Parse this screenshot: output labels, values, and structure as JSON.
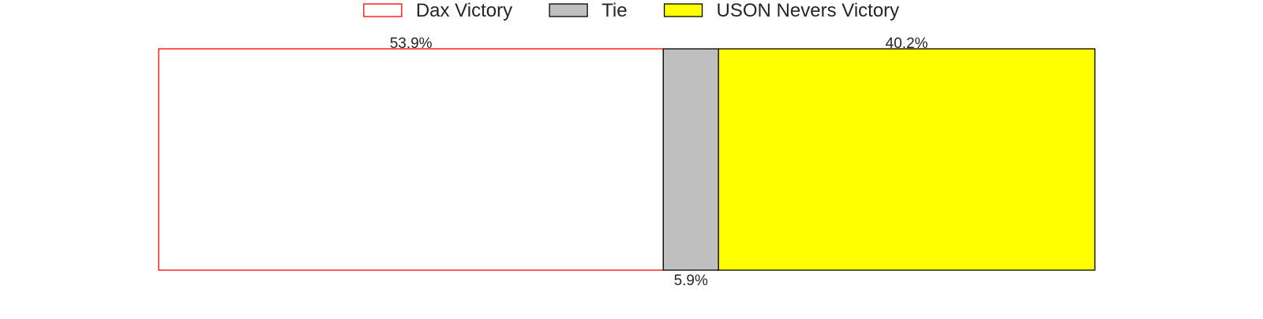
{
  "chart_data": {
    "type": "bar",
    "orientation": "horizontal",
    "stacked": true,
    "categories": [
      ""
    ],
    "series": [
      {
        "name": "Dax Victory",
        "values": [
          53.9
        ],
        "fill": "#ffffff",
        "stroke": "#ff0000",
        "label": "53.9%",
        "label_placement": "above"
      },
      {
        "name": "Tie",
        "values": [
          5.9
        ],
        "fill": "#bfbfbf",
        "stroke": "#000000",
        "label": "5.9%",
        "label_placement": "below"
      },
      {
        "name": "USON Nevers Victory",
        "values": [
          40.2
        ],
        "fill": "#ffff00",
        "stroke": "#000000",
        "label": "40.2%",
        "label_placement": "above"
      }
    ],
    "xlim": [
      0,
      100
    ],
    "grid": false,
    "axes_visible": false,
    "legend_position": "top-center"
  }
}
